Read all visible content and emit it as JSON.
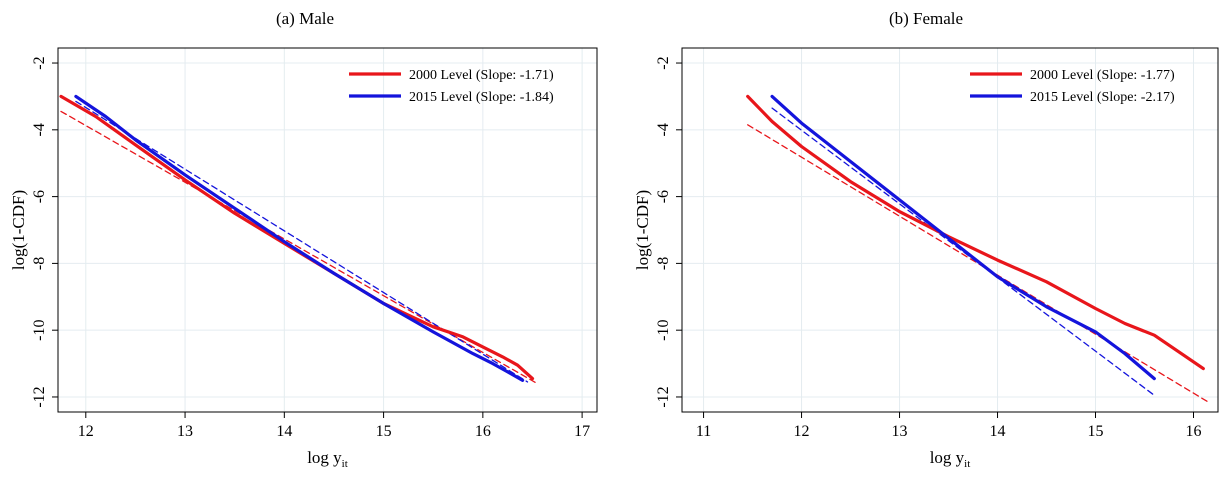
{
  "chart_data": [
    {
      "type": "line",
      "title": "(a) Male",
      "xlabel": "log y",
      "xlabel_sub": "it",
      "ylabel": "log(1-CDF)",
      "xlim": [
        11.72,
        17.15
      ],
      "ylim": [
        -12.45,
        -1.55
      ],
      "xticks": [
        12,
        13,
        14,
        15,
        16,
        17
      ],
      "yticks": [
        -2,
        -4,
        -6,
        -8,
        -10,
        -12
      ],
      "grid": true,
      "legend_position": "top-right",
      "colors": {
        "red": "#e8161b",
        "blue": "#1414dc"
      },
      "series": [
        {
          "name": "2000 Level (Slope: -1.71)",
          "color": "#e8161b",
          "x": [
            11.75,
            12.1,
            12.5,
            13.0,
            13.5,
            14.0,
            14.5,
            15.0,
            15.5,
            15.8,
            16.0,
            16.2,
            16.35,
            16.5
          ],
          "y": [
            -3.0,
            -3.6,
            -4.45,
            -5.5,
            -6.5,
            -7.4,
            -8.3,
            -9.2,
            -9.9,
            -10.2,
            -10.5,
            -10.8,
            -11.05,
            -11.45
          ]
        },
        {
          "name": "2015 Level (Slope: -1.84)",
          "color": "#1414dc",
          "x": [
            11.9,
            12.2,
            12.5,
            13.0,
            13.5,
            14.0,
            14.5,
            15.0,
            15.5,
            15.9,
            16.1,
            16.25,
            16.4
          ],
          "y": [
            -3.0,
            -3.6,
            -4.3,
            -5.35,
            -6.35,
            -7.35,
            -8.3,
            -9.2,
            -10.05,
            -10.7,
            -11.0,
            -11.25,
            -11.5
          ]
        },
        {
          "name": "",
          "color": "#e8161b",
          "style": "dashed",
          "x": [
            11.75,
            16.55
          ],
          "y": [
            -3.45,
            -11.6
          ]
        },
        {
          "name": "",
          "color": "#1414dc",
          "style": "dashed",
          "x": [
            11.9,
            16.45
          ],
          "y": [
            -3.15,
            -11.55
          ]
        }
      ]
    },
    {
      "type": "line",
      "title": "(b) Female",
      "xlabel": "log y",
      "xlabel_sub": "it",
      "ylabel": "log(1-CDF)",
      "xlim": [
        10.78,
        16.25
      ],
      "ylim": [
        -12.45,
        -1.55
      ],
      "xticks": [
        11,
        12,
        13,
        14,
        15,
        16
      ],
      "yticks": [
        -2,
        -4,
        -6,
        -8,
        -10,
        -12
      ],
      "grid": true,
      "legend_position": "top-right",
      "colors": {
        "red": "#e8161b",
        "blue": "#1414dc"
      },
      "series": [
        {
          "name": "2000 Level (Slope: -1.77)",
          "color": "#e8161b",
          "x": [
            11.45,
            11.7,
            12.0,
            12.5,
            13.0,
            13.5,
            14.0,
            14.5,
            15.0,
            15.3,
            15.6,
            15.9,
            16.1
          ],
          "y": [
            -3.0,
            -3.75,
            -4.5,
            -5.55,
            -6.45,
            -7.2,
            -7.9,
            -8.55,
            -9.35,
            -9.8,
            -10.15,
            -10.75,
            -11.15
          ]
        },
        {
          "name": "2015 Level (Slope: -2.17)",
          "color": "#1414dc",
          "x": [
            11.7,
            12.0,
            12.5,
            13.0,
            13.5,
            14.0,
            14.5,
            15.0,
            15.3,
            15.6
          ],
          "y": [
            -3.0,
            -3.8,
            -4.95,
            -6.1,
            -7.25,
            -8.4,
            -9.3,
            -10.05,
            -10.7,
            -11.45
          ]
        },
        {
          "name": "",
          "color": "#e8161b",
          "style": "dashed",
          "x": [
            11.45,
            16.15
          ],
          "y": [
            -3.85,
            -12.15
          ]
        },
        {
          "name": "",
          "color": "#1414dc",
          "style": "dashed",
          "x": [
            11.7,
            15.6
          ],
          "y": [
            -3.35,
            -11.95
          ]
        }
      ]
    }
  ]
}
